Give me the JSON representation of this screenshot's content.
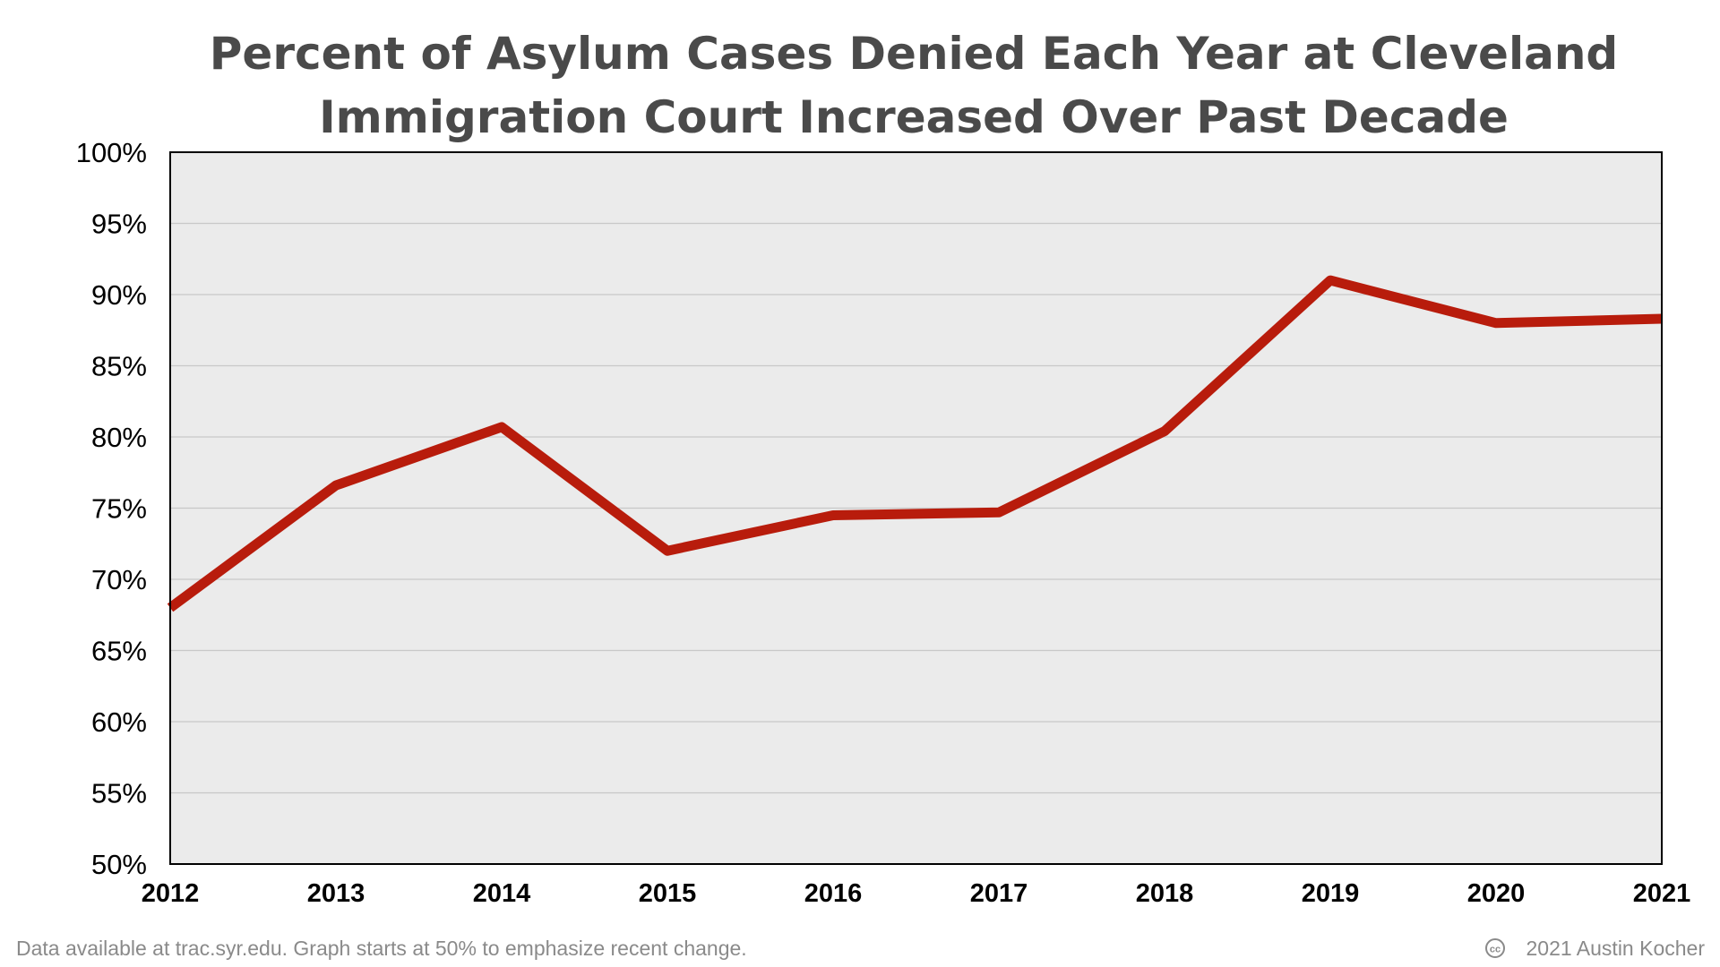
{
  "chart_data": {
    "type": "line",
    "title": [
      "Percent of Asylum Cases Denied Each Year at Cleveland",
      "Immigration Court Increased Over Past Decade"
    ],
    "x": [
      2012,
      2013,
      2014,
      2015,
      2016,
      2017,
      2018,
      2019,
      2020,
      2021
    ],
    "x_tick_labels": [
      "2012",
      "2013",
      "2014",
      "2015",
      "2016",
      "2017",
      "2018",
      "2019",
      "2020",
      "2021"
    ],
    "series": [
      {
        "values": [
          68,
          76.6,
          80.7,
          72,
          74.5,
          74.7,
          80.4,
          91,
          88,
          88.3
        ],
        "color": "#b81c0c"
      }
    ],
    "ylim": [
      50,
      100
    ],
    "y_ticks": [
      50,
      55,
      60,
      65,
      70,
      75,
      80,
      85,
      90,
      95,
      100
    ],
    "y_tick_labels": [
      "50%",
      "55%",
      "60%",
      "65%",
      "70%",
      "75%",
      "80%",
      "85%",
      "90%",
      "95%",
      "100%"
    ],
    "grid": true,
    "plot_background": "#ebebeb",
    "gridline_color": "#c8c8c8"
  },
  "footer": {
    "note": "Data available at trac.syr.edu. Graph starts at 50% to emphasize recent change.",
    "credit_icon": "cc-icon",
    "credit": "2021 Austin Kocher"
  }
}
